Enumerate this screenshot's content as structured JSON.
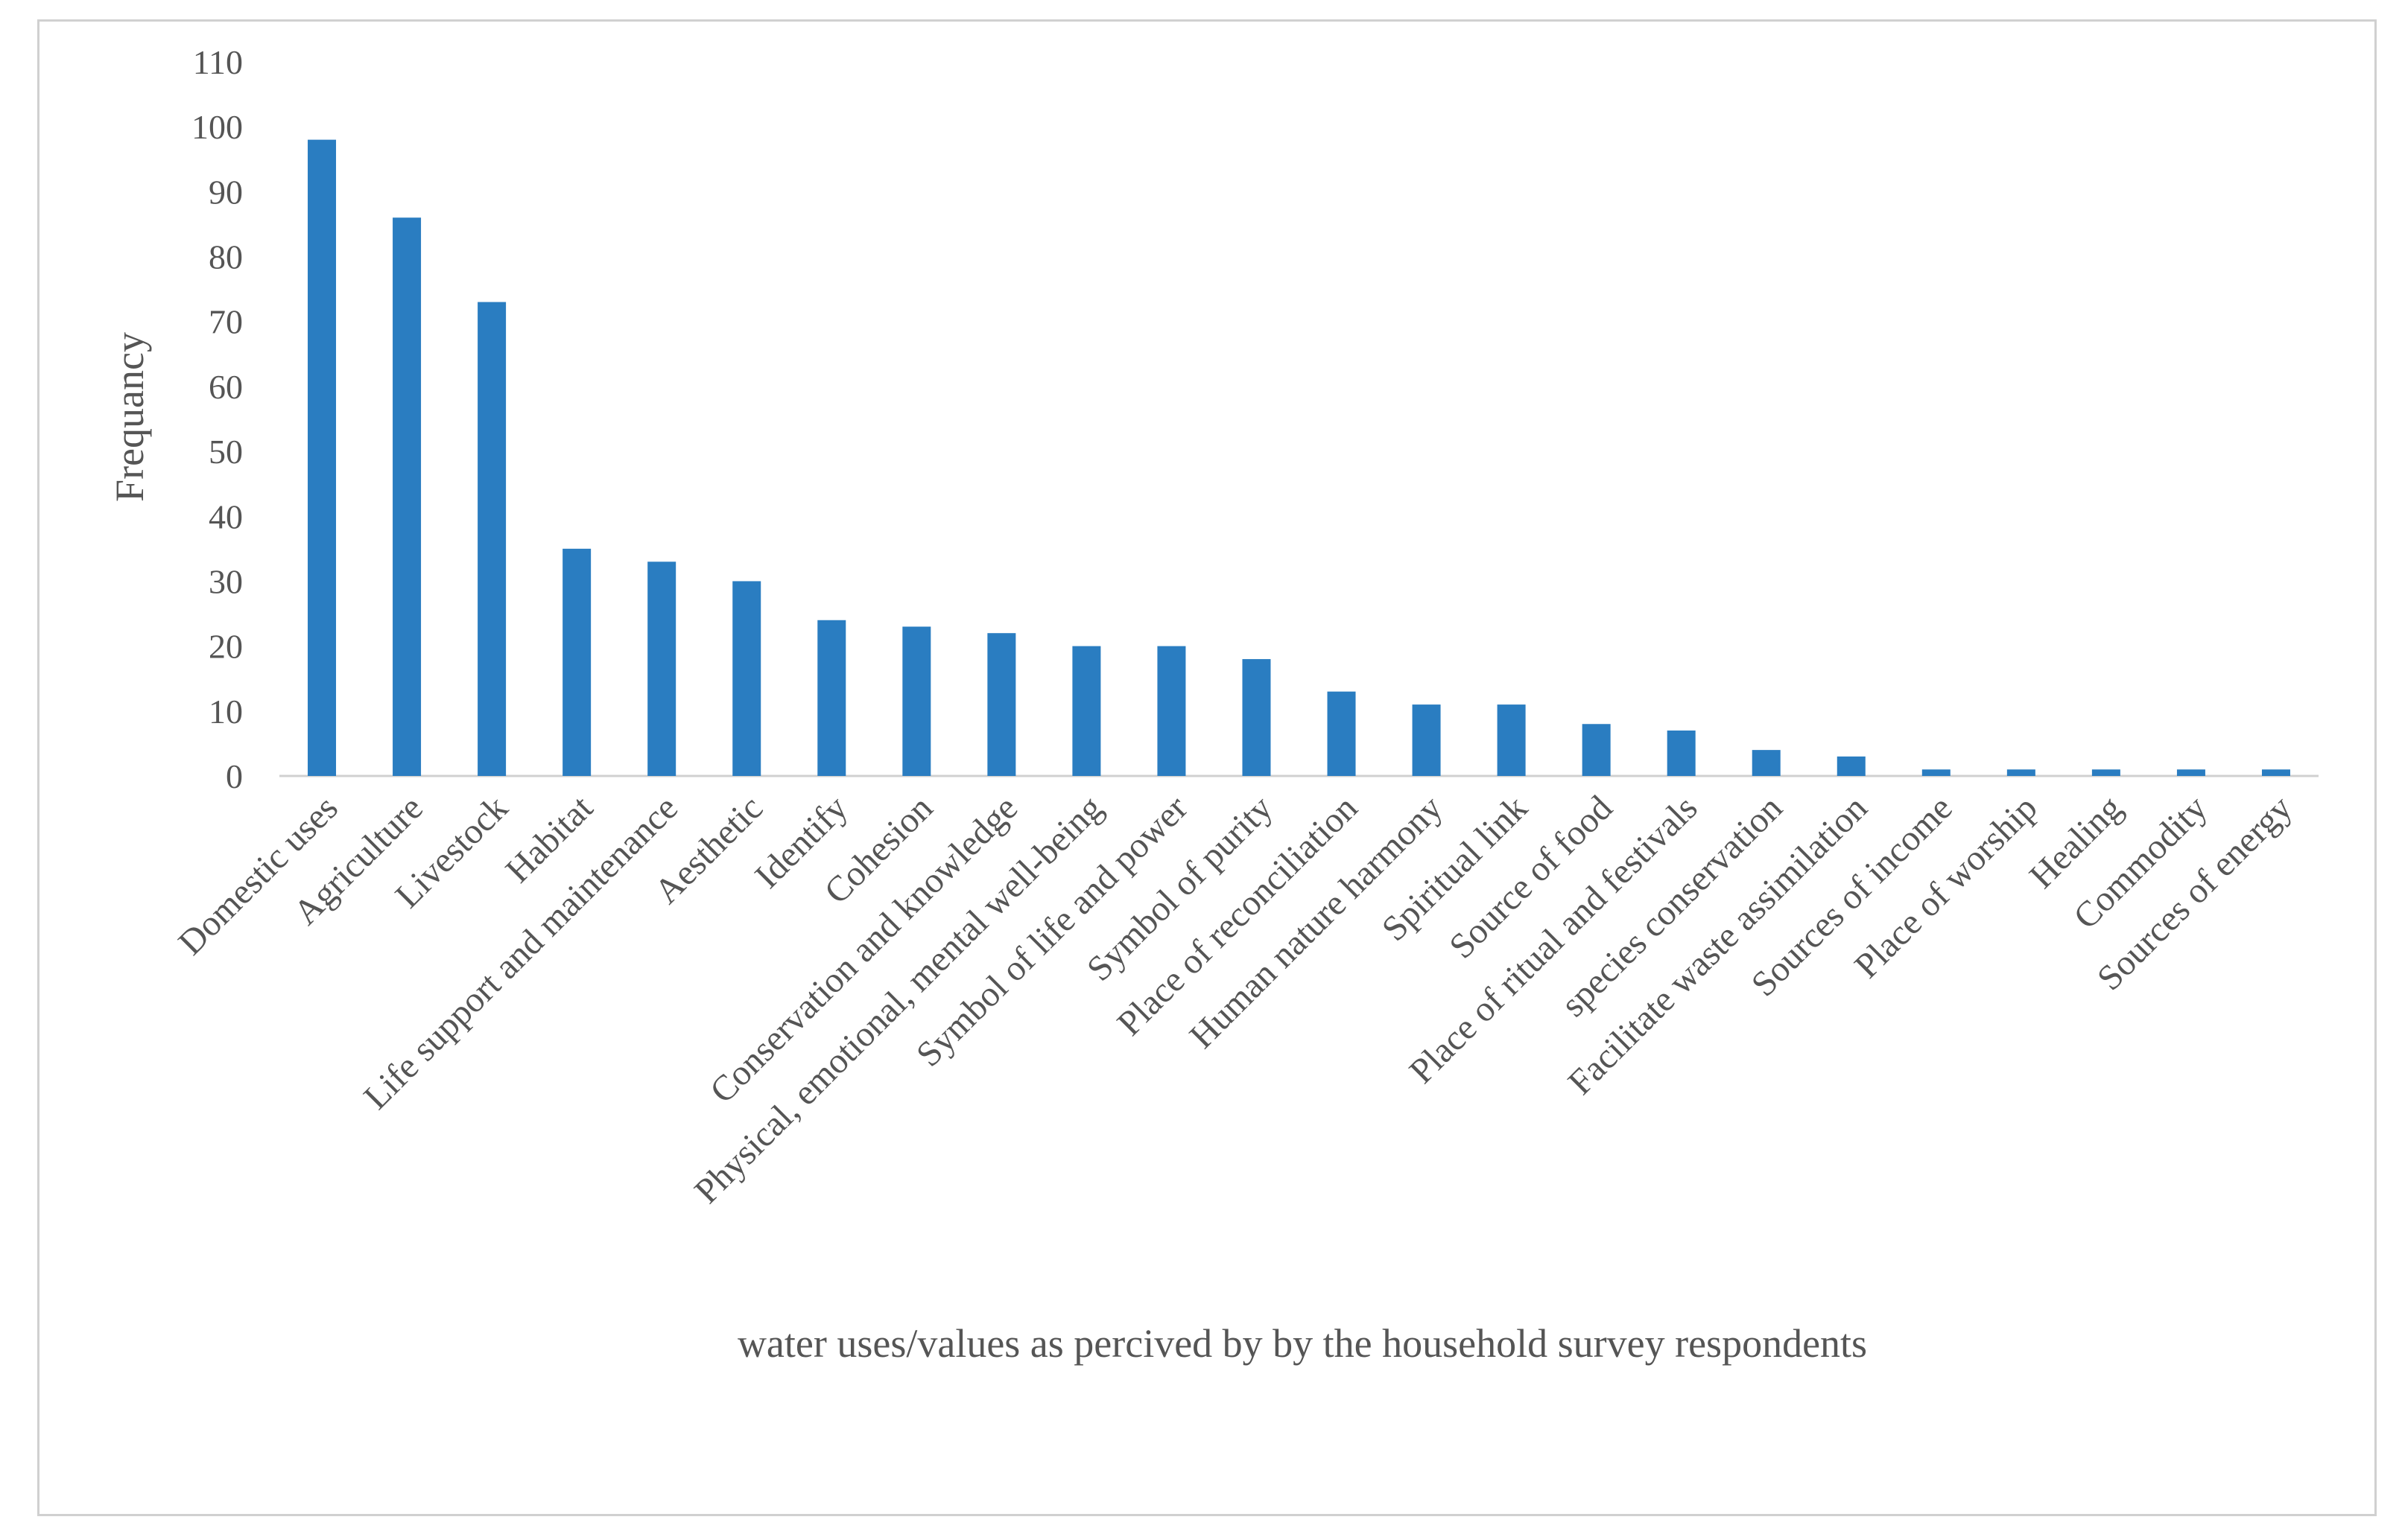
{
  "chart_data": {
    "type": "bar",
    "title": "",
    "xlabel": "water uses/values as percived by  by the household survey respondents",
    "ylabel": "Frequancy",
    "ylim": [
      0,
      110
    ],
    "yticks": [
      "0",
      "10",
      "20",
      "30",
      "40",
      "50",
      "60",
      "70",
      "80",
      "90",
      "100",
      "110"
    ],
    "grid": false,
    "bar_color": "#2a7dc1",
    "categories": [
      "Domestic uses",
      "Agriculture",
      "Livestock",
      "Habitat",
      "Life support and maintenance",
      "Aesthetic",
      "Identify",
      "Cohesion",
      "Conservation and knowledge",
      "Physical, emotional, mental well-being",
      "Symbol of life and power",
      "Symbol of purity",
      "Place of reconciliation",
      "Human nature harmony",
      "Spiritual link",
      "Source of food",
      "Place of ritual and festivals",
      "species conservation",
      "Facilitate waste assimilation",
      "Sources of income",
      "Place of worship",
      "Healing",
      "Commodity",
      "Sources of energy"
    ],
    "values": [
      98,
      86,
      73,
      35,
      33,
      30,
      24,
      23,
      22,
      20,
      20,
      18,
      13,
      11,
      11,
      8,
      7,
      4,
      3,
      1,
      1,
      1,
      1,
      1
    ]
  }
}
